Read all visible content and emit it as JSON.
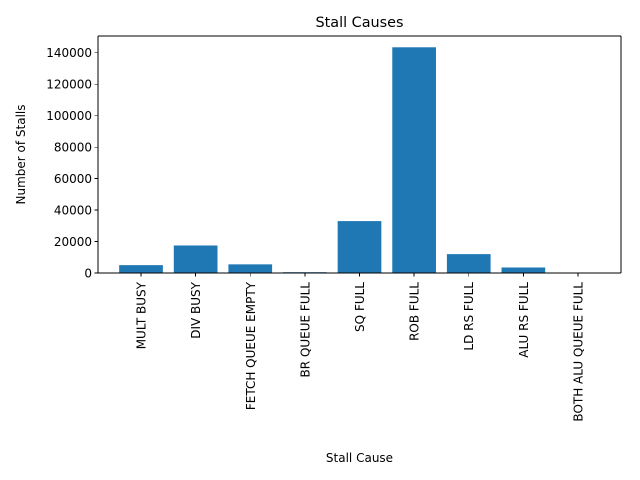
{
  "chart_data": {
    "type": "bar",
    "title": "Stall Causes",
    "xlabel": "Stall Cause",
    "ylabel": "Number of Stalls",
    "categories": [
      "MULT BUSY",
      "DIV BUSY",
      "FETCH QUEUE EMPTY",
      "BR QUEUE FULL",
      "SQ FULL",
      "ROB FULL",
      "LD RS FULL",
      "ALU RS FULL",
      "BOTH ALU QUEUE FULL"
    ],
    "values": [
      5000,
      17500,
      5500,
      500,
      33000,
      143500,
      12000,
      3500,
      0
    ],
    "ylim": [
      0,
      150675
    ],
    "yticks": [
      0,
      20000,
      40000,
      60000,
      80000,
      100000,
      120000,
      140000
    ],
    "bar_color": "#1f77b4",
    "grid": false,
    "legend": "none"
  }
}
